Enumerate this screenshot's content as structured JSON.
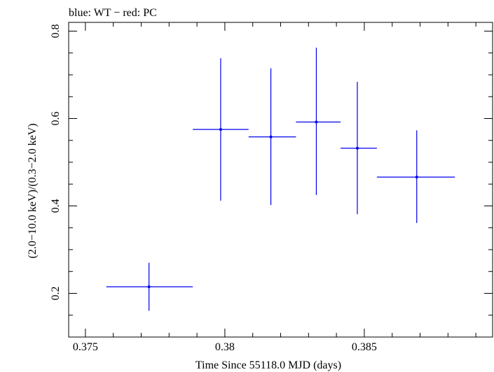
{
  "chart_data": {
    "type": "scatter",
    "title": "blue: WT − red: PC",
    "xlabel": "Time Since 55118.0 MJD (days)",
    "ylabel": "(2.0−10.0 keV)/(0.3−2.0 keV)",
    "xlim": [
      0.3744,
      0.3896
    ],
    "ylim": [
      0.1,
      0.82
    ],
    "x_ticks": [
      {
        "value": 0.375,
        "label": "0.375"
      },
      {
        "value": 0.38,
        "label": "0.38"
      },
      {
        "value": 0.385,
        "label": "0.385"
      }
    ],
    "y_ticks": [
      {
        "value": 0.2,
        "label": "0.2"
      },
      {
        "value": 0.4,
        "label": "0.4"
      },
      {
        "value": 0.6,
        "label": "0.6"
      },
      {
        "value": 0.8,
        "label": "0.8"
      }
    ],
    "series": [
      {
        "name": "WT",
        "color": "#0000ee",
        "points": [
          {
            "x": 0.37728,
            "y": 0.215,
            "xerr_lo": 0.37575,
            "xerr_hi": 0.37885,
            "yerr_lo": 0.16,
            "yerr_hi": 0.27
          },
          {
            "x": 0.37985,
            "y": 0.575,
            "xerr_lo": 0.37885,
            "xerr_hi": 0.38085,
            "yerr_lo": 0.412,
            "yerr_hi": 0.738
          },
          {
            "x": 0.38165,
            "y": 0.558,
            "xerr_lo": 0.38085,
            "xerr_hi": 0.38255,
            "yerr_lo": 0.402,
            "yerr_hi": 0.715
          },
          {
            "x": 0.38328,
            "y": 0.592,
            "xerr_lo": 0.38255,
            "xerr_hi": 0.38415,
            "yerr_lo": 0.425,
            "yerr_hi": 0.762
          },
          {
            "x": 0.38475,
            "y": 0.532,
            "xerr_lo": 0.38415,
            "xerr_hi": 0.38545,
            "yerr_lo": 0.381,
            "yerr_hi": 0.684
          },
          {
            "x": 0.38688,
            "y": 0.466,
            "xerr_lo": 0.38545,
            "xerr_hi": 0.38825,
            "yerr_lo": 0.361,
            "yerr_hi": 0.573
          }
        ]
      }
    ]
  }
}
